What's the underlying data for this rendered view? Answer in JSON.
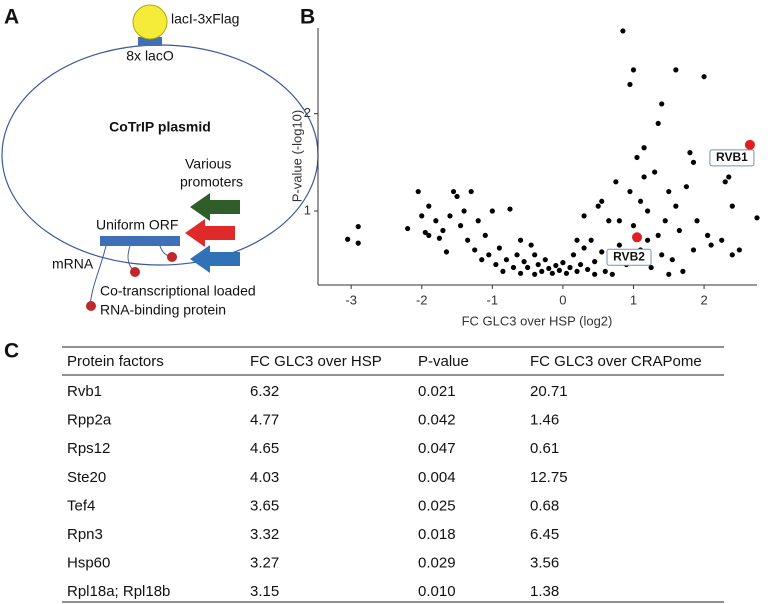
{
  "panel_labels": [
    "A",
    "B",
    "C"
  ],
  "diagram": {
    "laci_label": "lacI-3xFlag",
    "laco_label": "8x lacO",
    "plasmid_label": "CoTrIP plasmid",
    "promoters_label": [
      "Various",
      "promoters"
    ],
    "orf_label": "Uniform ORF",
    "mrna_label": "mRNA",
    "rbp_label": [
      "Co-transcriptional loaded",
      "RNA-binding protein"
    ]
  },
  "chart_data": {
    "type": "scatter",
    "x_label": "FC GLC3 over HSP (log2)",
    "y_label": "P-value (-log10)",
    "color": "#000000",
    "x": [
      -3.05,
      -2.9,
      -2.9,
      -2.2,
      -2.05,
      -2.0,
      -1.95,
      -1.9,
      -1.8,
      -1.75,
      -1.7,
      -1.6,
      -1.55,
      -1.5,
      -1.45,
      -1.4,
      -1.35,
      -1.3,
      -1.25,
      -1.2,
      -1.15,
      -1.1,
      -1.05,
      -1.0,
      -0.95,
      -0.9,
      -0.85,
      -0.8,
      -0.75,
      -0.7,
      -0.65,
      -0.6,
      -0.55,
      -0.5,
      -0.45,
      -0.4,
      -0.35,
      -0.3,
      -0.25,
      -0.2,
      -0.15,
      -0.1,
      -0.05,
      0,
      0.05,
      0.1,
      0.15,
      0.2,
      0.25,
      0.3,
      0.35,
      0.4,
      0.45,
      0.5,
      0.55,
      0.6,
      0.65,
      0.7,
      0.75,
      0.8,
      0.85,
      0.9,
      0.95,
      1.0,
      1.05,
      1.1,
      1.15,
      1.2,
      1.25,
      1.3,
      1.35,
      1.4,
      1.45,
      1.5,
      1.55,
      1.6,
      1.65,
      1.7,
      1.75,
      1.8,
      1.85,
      1.9,
      0.95,
      1.0,
      1.6,
      2.0,
      1.85,
      2.05,
      2.1,
      2.25,
      2.3,
      2.35,
      2.4,
      2.5,
      2.4,
      2.75,
      1.35,
      1.15,
      0.55,
      0.45,
      0.7,
      0.8,
      1.1,
      1.2,
      1.4,
      1.5,
      -0.6,
      -0.4,
      -1.65,
      -1.9,
      0.3,
      0.2
    ],
    "values": [
      0.71,
      0.84,
      0.67,
      0.82,
      1.2,
      0.95,
      0.78,
      0.75,
      0.9,
      0.72,
      0.8,
      0.95,
      1.2,
      1.15,
      0.85,
      1.0,
      0.7,
      1.2,
      0.6,
      0.9,
      0.5,
      0.75,
      0.55,
      1.0,
      0.45,
      0.62,
      0.38,
      0.5,
      1.02,
      0.42,
      0.55,
      0.36,
      0.48,
      0.42,
      0.65,
      0.35,
      0.45,
      0.38,
      0.5,
      0.41,
      0.36,
      0.44,
      0.39,
      0.47,
      0.36,
      0.42,
      0.55,
      0.38,
      0.45,
      0.62,
      0.4,
      0.7,
      0.48,
      1.05,
      0.58,
      0.38,
      0.9,
      0.52,
      1.3,
      0.65,
      2.85,
      0.45,
      1.2,
      0.85,
      1.55,
      0.6,
      1.65,
      1.0,
      0.42,
      1.4,
      0.75,
      2.1,
      0.9,
      1.2,
      0.5,
      1.05,
      0.8,
      0.38,
      1.25,
      1.6,
      0.6,
      0.9,
      2.3,
      2.45,
      2.45,
      2.38,
      1.5,
      0.75,
      0.65,
      0.7,
      1.3,
      1.35,
      0.55,
      0.6,
      1.05,
      0.93,
      1.9,
      1.35,
      1.1,
      0.35,
      0.35,
      0.9,
      1.1,
      0.7,
      0.55,
      0.35,
      0.7,
      0.55,
      0.58,
      1.05,
      0.95,
      0.7
    ],
    "highlight_color": "#e02020",
    "highlights": [
      {
        "label": "RVB1",
        "x": 2.65,
        "value": 1.68
      },
      {
        "label": "RVB2",
        "x": 1.05,
        "value": 0.73
      }
    ],
    "xlim": [
      -3.47,
      2.75
    ],
    "ylim": [
      0.24,
      2.88
    ],
    "xticks": [
      -3,
      -2,
      -1,
      0,
      1,
      2
    ],
    "yticks": [
      1,
      2
    ],
    "grid": false
  },
  "table": {
    "header": [
      "Protein factors",
      "FC GLC3 over HSP",
      "P-value",
      "FC GLC3 over CRAPome"
    ],
    "rows": [
      [
        "Rvb1",
        "6.32",
        "0.021",
        "20.71"
      ],
      [
        "Rpp2a",
        "4.77",
        "0.042",
        "1.46"
      ],
      [
        "Rps12",
        "4.65",
        "0.047",
        "0.61"
      ],
      [
        "Ste20",
        "4.03",
        "0.004",
        "12.75"
      ],
      [
        "Tef4",
        "3.65",
        "0.025",
        "0.68"
      ],
      [
        "Rpn3",
        "3.32",
        "0.018",
        "6.45"
      ],
      [
        "Hsp60",
        "3.27",
        "0.029",
        "3.56"
      ],
      [
        "Rpl18a; Rpl18b",
        "3.15",
        "0.010",
        "1.38"
      ]
    ]
  }
}
